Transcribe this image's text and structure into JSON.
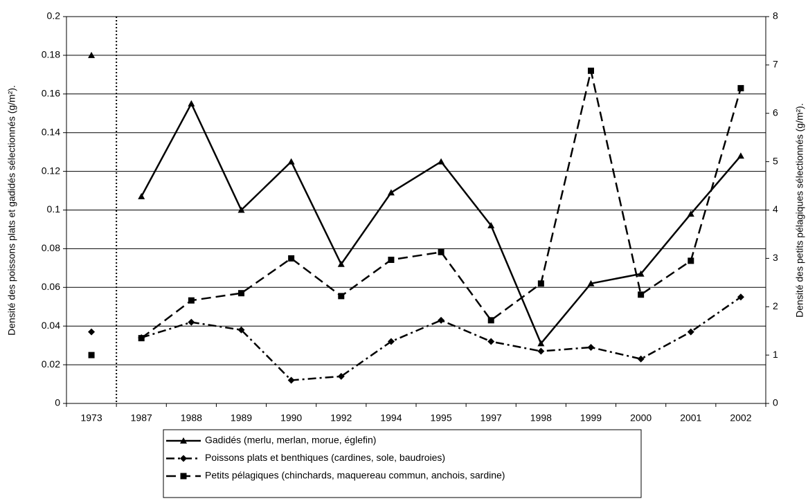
{
  "chart_data": {
    "type": "line",
    "categories": [
      "1973",
      "1987",
      "1988",
      "1989",
      "1990",
      "1992",
      "1994",
      "1995",
      "1997",
      "1998",
      "1999",
      "2000",
      "2001",
      "2002"
    ],
    "ylabel": "Densité des poissons plats et gadidés sélectionnés (g/m²).",
    "y2label": "Densité des petits pélagiques sélectionnés (g/m²).",
    "ylim": [
      0,
      0.2
    ],
    "yticks": [
      0,
      0.02,
      0.04,
      0.06,
      0.08,
      0.1,
      0.12,
      0.14,
      0.16,
      0.18,
      0.2
    ],
    "y2lim": [
      0,
      8
    ],
    "y2ticks": [
      0,
      1,
      2,
      3,
      4,
      5,
      6,
      7,
      8
    ],
    "grid": true,
    "divider_after_category": 0,
    "legend": "bottom",
    "series": [
      {
        "name": "Gadidés (merlu, merlan, morue, églefin)",
        "color": "#000000",
        "dash": "solid",
        "marker": "triangle",
        "values": [
          0.18,
          0.107,
          0.155,
          0.1,
          0.125,
          0.072,
          0.109,
          0.125,
          0.092,
          0.031,
          0.062,
          0.067,
          0.098,
          0.128
        ]
      },
      {
        "name": "Poissons plats et benthiques (cardines, sole, baudroies)",
        "color": "#000000",
        "dash": "dashdot",
        "marker": "diamond",
        "values": [
          0.037,
          0.034,
          0.042,
          0.038,
          0.012,
          0.014,
          0.032,
          0.043,
          0.032,
          0.027,
          0.029,
          0.023,
          0.037,
          0.055
        ]
      },
      {
        "name": "Petits pélagiques (chinchards, maquereau commun, anchois, sardine)",
        "color": "#000000",
        "dash": "dashed",
        "marker": "square",
        "axis": "y2",
        "values": [
          1.0,
          1.35,
          2.13,
          2.28,
          3.0,
          2.22,
          2.97,
          3.13,
          1.72,
          2.48,
          6.88,
          2.25,
          2.95,
          6.52
        ]
      }
    ]
  }
}
